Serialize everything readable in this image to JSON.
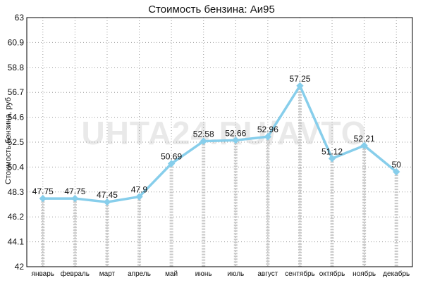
{
  "chart_data": {
    "type": "line",
    "title": "Стоимость бензина: Аи95",
    "ylabel": "Стоимость бензина, руб",
    "xlabel": "",
    "watermark": "UHTA24.RU/AVTO",
    "categories": [
      "январь",
      "февраль",
      "март",
      "апрель",
      "май",
      "июнь",
      "июль",
      "август",
      "сентябрь",
      "октябрь",
      "ноябрь",
      "декабрь"
    ],
    "series": [
      {
        "values": [
          47.75,
          47.75,
          47.45,
          47.9,
          50.69,
          52.58,
          52.66,
          52.96,
          57.25,
          51.12,
          52.21,
          50
        ],
        "labels": [
          "47.75",
          "47.75",
          "47.45",
          "47.9",
          "50.69",
          "52.58",
          "52.66",
          "52.96",
          "57.25",
          "51.12",
          "52.21",
          "50"
        ],
        "color": "#87ceeb"
      }
    ],
    "yticks": [
      "42",
      "44.1",
      "46.2",
      "48.3",
      "50.4",
      "52.5",
      "54.6",
      "56.7",
      "58.8",
      "60.9",
      "63"
    ],
    "ylim": [
      42,
      63
    ],
    "grid": "dotted"
  }
}
